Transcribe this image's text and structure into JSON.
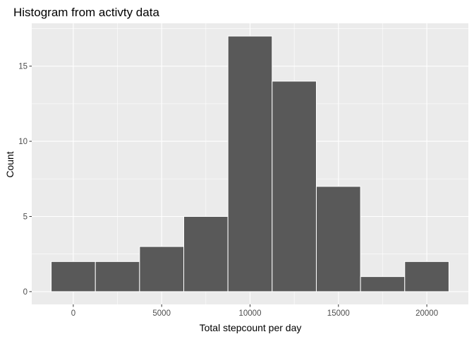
{
  "chart_data": {
    "type": "bar",
    "title": "Histogram from activty data",
    "xlabel": "Total stepcount per day",
    "ylabel": "Count",
    "bin_width": 2500,
    "bins": [
      {
        "x0": -1250,
        "x1": 1250,
        "count": 2
      },
      {
        "x0": 1250,
        "x1": 3750,
        "count": 2
      },
      {
        "x0": 3750,
        "x1": 6250,
        "count": 3
      },
      {
        "x0": 6250,
        "x1": 8750,
        "count": 5
      },
      {
        "x0": 8750,
        "x1": 11250,
        "count": 17
      },
      {
        "x0": 11250,
        "x1": 13750,
        "count": 14
      },
      {
        "x0": 13750,
        "x1": 16250,
        "count": 7
      },
      {
        "x0": 16250,
        "x1": 18750,
        "count": 1
      },
      {
        "x0": 18750,
        "x1": 21250,
        "count": 2
      }
    ],
    "xlim": [
      -2350,
      22350
    ],
    "ylim": [
      -0.85,
      17.85
    ],
    "x_ticks": [
      0,
      5000,
      10000,
      15000,
      20000
    ],
    "x_tick_labels": [
      "0",
      "5000",
      "10000",
      "15000",
      "20000"
    ],
    "y_ticks": [
      0,
      5,
      10,
      15
    ],
    "y_tick_labels": [
      "0",
      "5",
      "10",
      "15"
    ],
    "grid": true,
    "colors": {
      "panel_background": "#ebebeb",
      "grid_major": "#ffffff",
      "bar_fill": "#595959",
      "bar_outline": "#ffffff",
      "tick_text": "#4d4d4d"
    }
  }
}
